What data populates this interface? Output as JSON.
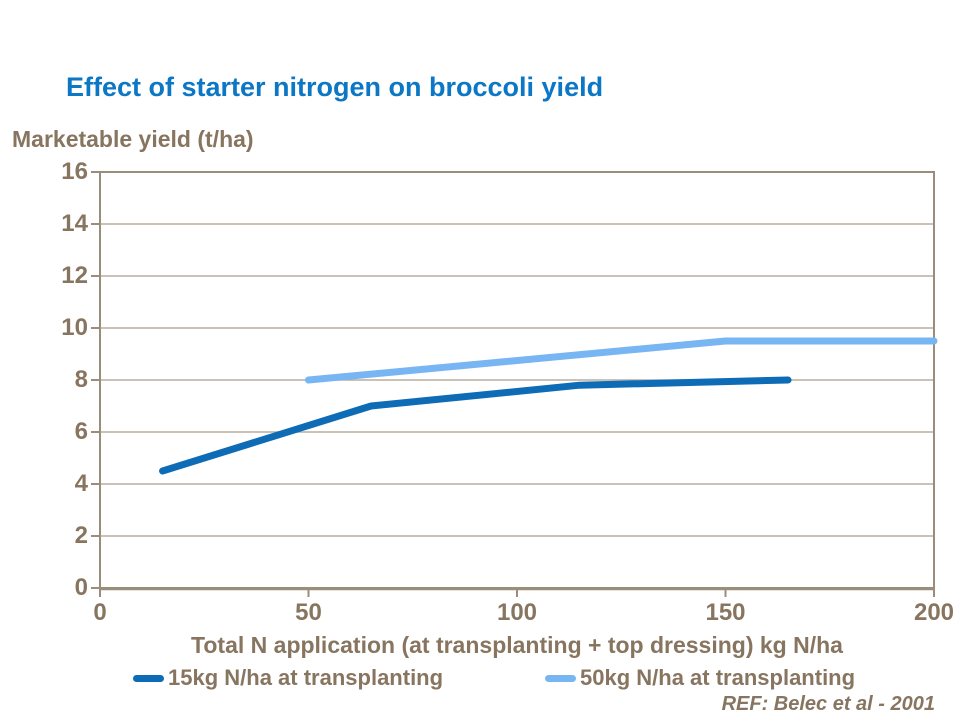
{
  "ref_note": "REF: Belec et al - 2001",
  "colors": {
    "title_blue": "#0b77c5",
    "label_brown": "#877560",
    "gridline": "#b9ae9e",
    "axis": "#9a8d7b",
    "background": "#ffffff",
    "series1_dark_blue": "#0e6bb5",
    "series2_light_blue": "#77b6f2"
  },
  "chart_data": {
    "type": "line",
    "title": "Effect of starter nitrogen on broccoli yield",
    "ylabel": "Marketable yield (t/ha)",
    "xlabel": "Total N application (at transplanting + top dressing) kg N/ha",
    "xlim": [
      0,
      200
    ],
    "ylim": [
      0,
      16
    ],
    "x_ticks": [
      0,
      50,
      100,
      150,
      200
    ],
    "y_ticks": [
      0,
      2,
      4,
      6,
      8,
      10,
      12,
      14,
      16
    ],
    "grid": "horizontal-only",
    "legend_position": "bottom",
    "series": [
      {
        "name": "15kg N/ha at transplanting",
        "color": "#0e6bb5",
        "points": [
          [
            15,
            4.5
          ],
          [
            65,
            7.0
          ],
          [
            115,
            7.8
          ],
          [
            165,
            8.0
          ]
        ]
      },
      {
        "name": "50kg N/ha at transplanting",
        "color": "#77b6f2",
        "points": [
          [
            50,
            8.0
          ],
          [
            150,
            9.5
          ],
          [
            200,
            9.5
          ]
        ]
      }
    ]
  }
}
